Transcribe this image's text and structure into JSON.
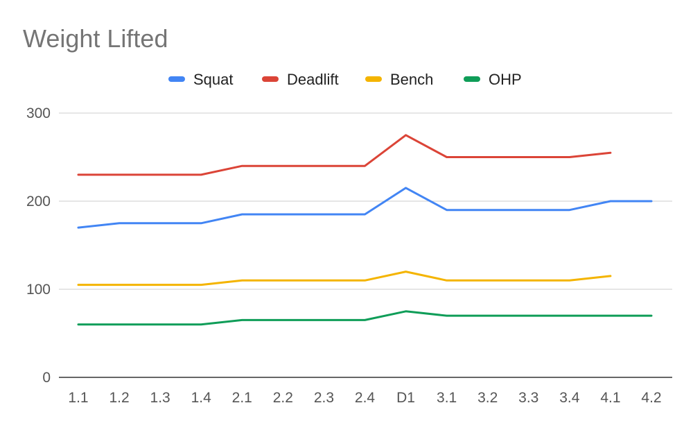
{
  "chart_data": {
    "type": "line",
    "title": "Weight Lifted",
    "categories": [
      "1.1",
      "1.2",
      "1.3",
      "1.4",
      "2.1",
      "2.2",
      "2.3",
      "2.4",
      "D1",
      "3.1",
      "3.2",
      "3.3",
      "3.4",
      "4.1",
      "4.2"
    ],
    "y_ticks": [
      "0",
      "100",
      "200",
      "300"
    ],
    "ylim": [
      0,
      300
    ],
    "grid": true,
    "legend_position": "top",
    "series": [
      {
        "name": "Squat",
        "color": "#4285f4",
        "values": [
          170,
          175,
          175,
          175,
          185,
          185,
          185,
          185,
          215,
          190,
          190,
          190,
          190,
          200,
          200
        ]
      },
      {
        "name": "Deadlift",
        "color": "#db4437",
        "values": [
          230,
          230,
          230,
          230,
          240,
          240,
          240,
          240,
          275,
          250,
          250,
          250,
          250,
          255,
          null
        ]
      },
      {
        "name": "Bench",
        "color": "#f4b400",
        "values": [
          105,
          105,
          105,
          105,
          110,
          110,
          110,
          110,
          120,
          110,
          110,
          110,
          110,
          115,
          null
        ]
      },
      {
        "name": "OHP",
        "color": "#0f9d58",
        "values": [
          60,
          60,
          60,
          60,
          65,
          65,
          65,
          65,
          75,
          70,
          70,
          70,
          70,
          70,
          70
        ]
      }
    ]
  }
}
